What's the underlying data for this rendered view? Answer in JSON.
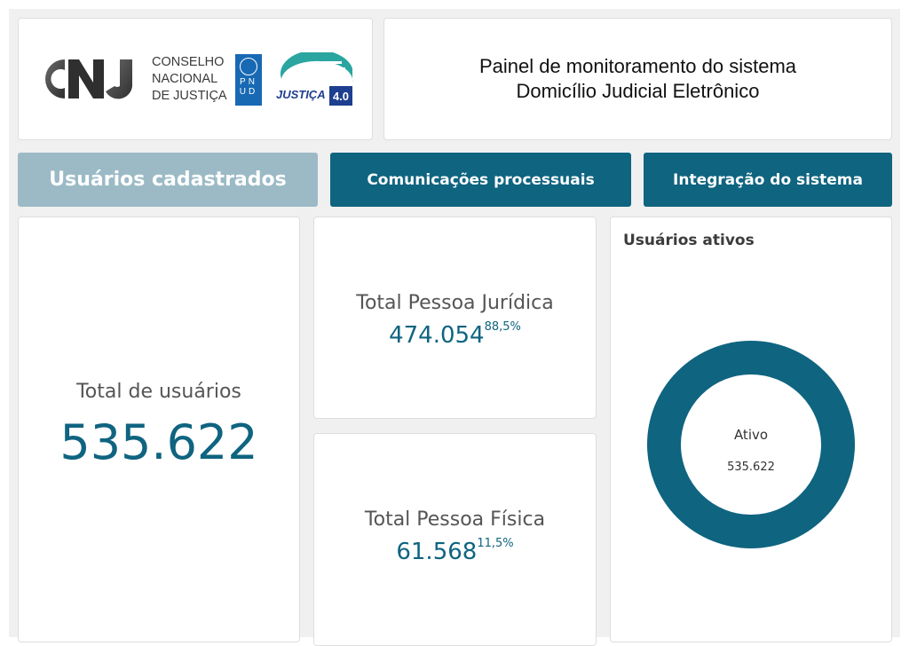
{
  "header": {
    "org_lines": [
      "CONSELHO",
      "NACIONAL",
      "DE JUSTIÇA"
    ],
    "cnj_logo_text": "CNJ",
    "pnud_letters": [
      "P",
      "N",
      "U",
      "D"
    ],
    "justica_logo_text": "JUSTIÇA",
    "justica_version": "4.0",
    "title_line1": "Painel de monitoramento do sistema",
    "title_line2": "Domicílio Judicial Eletrônico"
  },
  "tabs": [
    {
      "label": "Usuários cadastrados",
      "active": true
    },
    {
      "label": "Comunicações processuais",
      "active": false
    },
    {
      "label": "Integração do sistema",
      "active": false
    }
  ],
  "total": {
    "label": "Total de usuários",
    "value": "535.622"
  },
  "pessoa_juridica": {
    "label": "Total Pessoa Jurídica",
    "value": "474.054",
    "percent": "88,5%"
  },
  "pessoa_fisica": {
    "label": "Total Pessoa Física",
    "value": "61.568",
    "percent": "11,5%"
  },
  "ativos": {
    "title": "Usuários ativos",
    "center_label": "Ativo",
    "center_value": "535.622"
  },
  "colors": {
    "primary": "#0f6480",
    "tab_active": "#9bbac6",
    "background": "#f0f0f0",
    "pnud_blue": "#1869b4",
    "justica_teal": "#2aa5a0",
    "justica_navy": "#1e3f8f"
  },
  "chart_data": {
    "type": "pie",
    "title": "Usuários ativos",
    "categories": [
      "Ativo"
    ],
    "values": [
      535622
    ]
  }
}
